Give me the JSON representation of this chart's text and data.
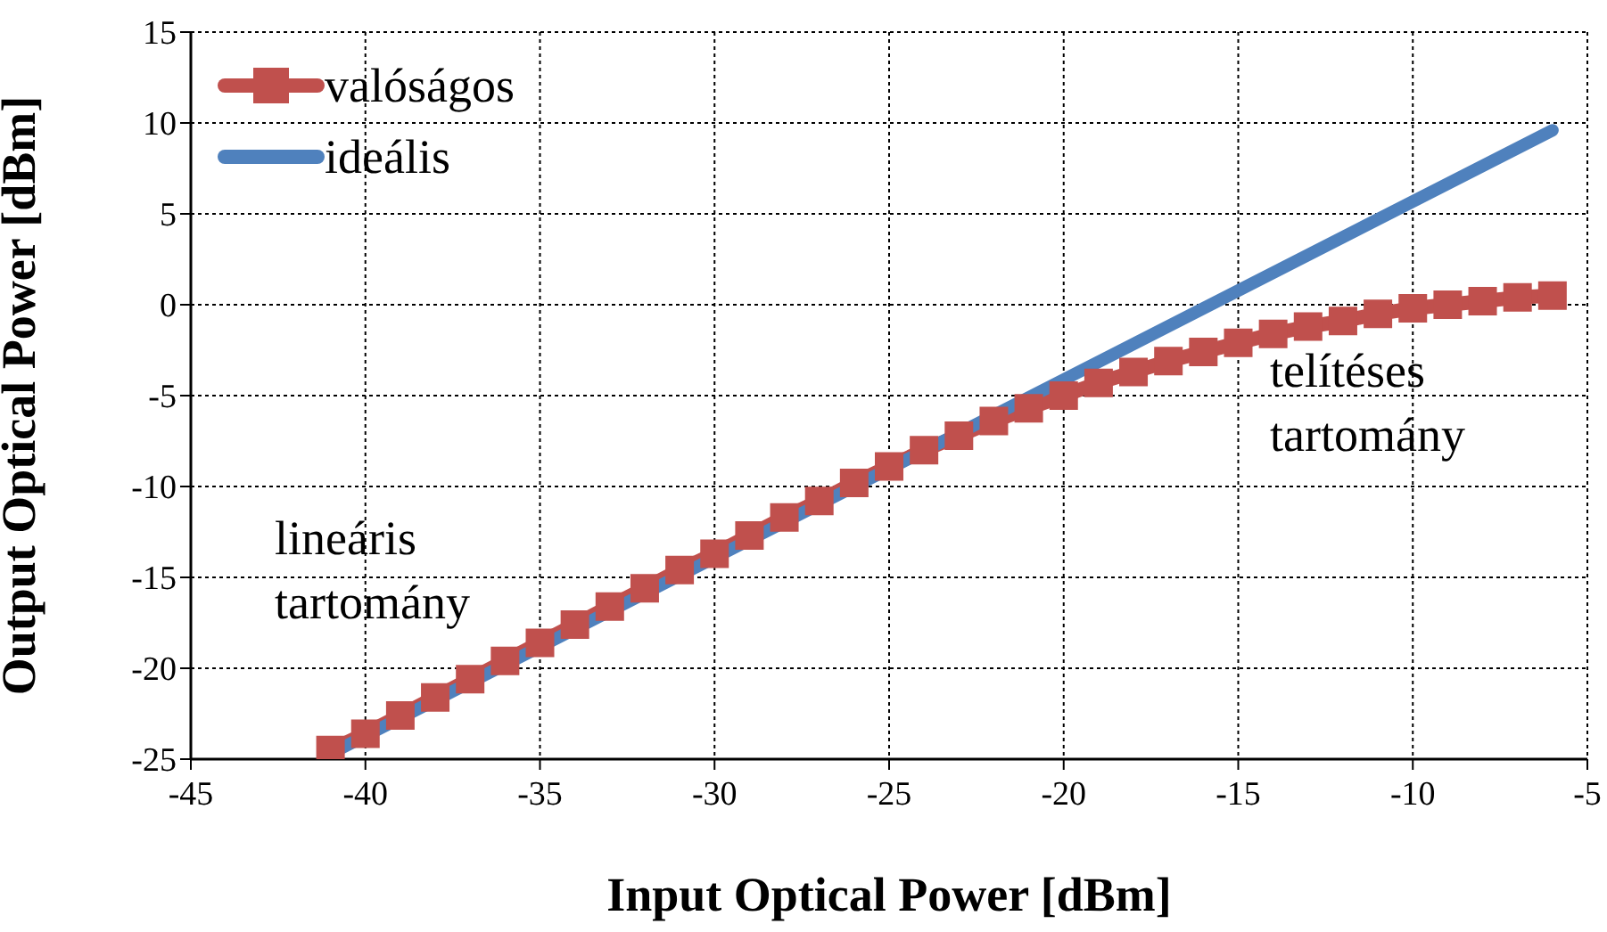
{
  "chart_data": {
    "type": "line",
    "xlabel": "Input Optical Power [dBm]",
    "ylabel": "Output Optical Power [dBm]",
    "xlim": [
      -45,
      -5
    ],
    "xticks": [
      -45,
      -40,
      -35,
      -30,
      -25,
      -20,
      -15,
      -10,
      -5
    ],
    "ylim": [
      -25,
      15
    ],
    "yticks": [
      -25,
      -20,
      -15,
      -10,
      -5,
      0,
      5,
      10,
      15
    ],
    "grid": true,
    "legend": "top left",
    "line_style": "solid",
    "series": [
      {
        "name": "valóságos",
        "color": "#c0504d",
        "marker": "square",
        "x": [
          -41,
          -40,
          -39,
          -38,
          -37,
          -36,
          -35,
          -34,
          -33,
          -32,
          -31,
          -30,
          -29,
          -28,
          -27,
          -26,
          -25,
          -24,
          -23,
          -22,
          -21,
          -20,
          -19,
          -18,
          -17,
          -16,
          -15,
          -14,
          -13,
          -12,
          -11,
          -10,
          -9,
          -8,
          -7,
          -6
        ],
        "values": [
          -24.5,
          -23.6,
          -22.6,
          -21.6,
          -20.6,
          -19.6,
          -18.6,
          -17.6,
          -16.6,
          -15.6,
          -14.6,
          -13.7,
          -12.7,
          -11.7,
          -10.8,
          -9.8,
          -8.9,
          -8.0,
          -7.2,
          -6.4,
          -5.7,
          -5.0,
          -4.3,
          -3.7,
          -3.1,
          -2.6,
          -2.1,
          -1.6,
          -1.2,
          -0.9,
          -0.5,
          -0.2,
          0.0,
          0.2,
          0.4,
          0.5
        ]
      },
      {
        "name": "ideális",
        "color": "#4f81bd",
        "marker": "none",
        "x": [
          -41,
          -6
        ],
        "values": [
          -24.7,
          9.6
        ]
      }
    ],
    "annotations": [
      "lineáris\ntartomány",
      "telítéses\ntartomány"
    ]
  }
}
